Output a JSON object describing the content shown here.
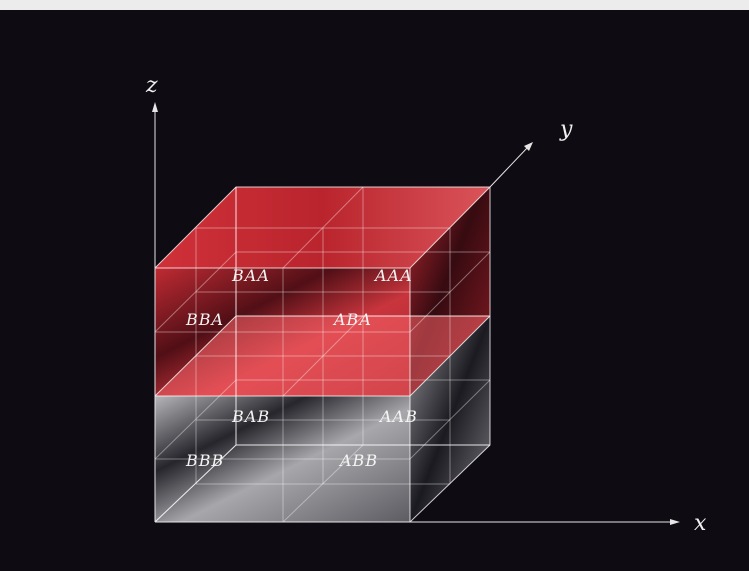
{
  "axes": {
    "x": "x",
    "y": "y",
    "z": "z"
  },
  "cells": {
    "top_back_left": "BAA",
    "top_back_right": "AAA",
    "top_front_left": "BBA",
    "top_front_right": "ABA",
    "bottom_back_left": "BAB",
    "bottom_back_right": "AAB",
    "bottom_front_left": "BBB",
    "bottom_front_right": "ABB"
  },
  "colors": {
    "background": "#0f0b12",
    "page": "#ececec",
    "upper_layer": "#e0343c",
    "lower_layer": "#b8b8bc",
    "lines": "#ffffff"
  }
}
